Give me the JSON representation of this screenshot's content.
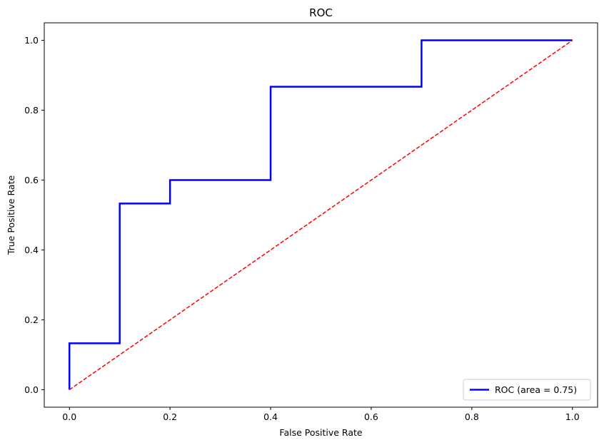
{
  "chart_data": {
    "type": "line",
    "title": "ROC",
    "xlabel": "False Positive Rate",
    "ylabel": "True Positive Rate",
    "xlim": [
      -0.05,
      1.05
    ],
    "ylim": [
      -0.05,
      1.05
    ],
    "xticks": [
      "0.0",
      "0.2",
      "0.4",
      "0.6",
      "0.8",
      "1.0"
    ],
    "yticks": [
      "0.0",
      "0.2",
      "0.4",
      "0.6",
      "0.8",
      "1.0"
    ],
    "grid": false,
    "legend_position": "lower-right",
    "series": [
      {
        "name": "ROC (area = 0.75)",
        "color": "#0000ff",
        "style": "step",
        "x": [
          0.0,
          0.0,
          0.1,
          0.1,
          0.2,
          0.2,
          0.4,
          0.4,
          0.7,
          0.7,
          1.0
        ],
        "y": [
          0.0,
          0.133,
          0.133,
          0.533,
          0.533,
          0.6,
          0.6,
          0.867,
          0.867,
          1.0,
          1.0
        ]
      },
      {
        "color": "#ff0000",
        "style": "dashed",
        "x": [
          0.0,
          1.0
        ],
        "y": [
          0.0,
          1.0
        ]
      }
    ]
  }
}
